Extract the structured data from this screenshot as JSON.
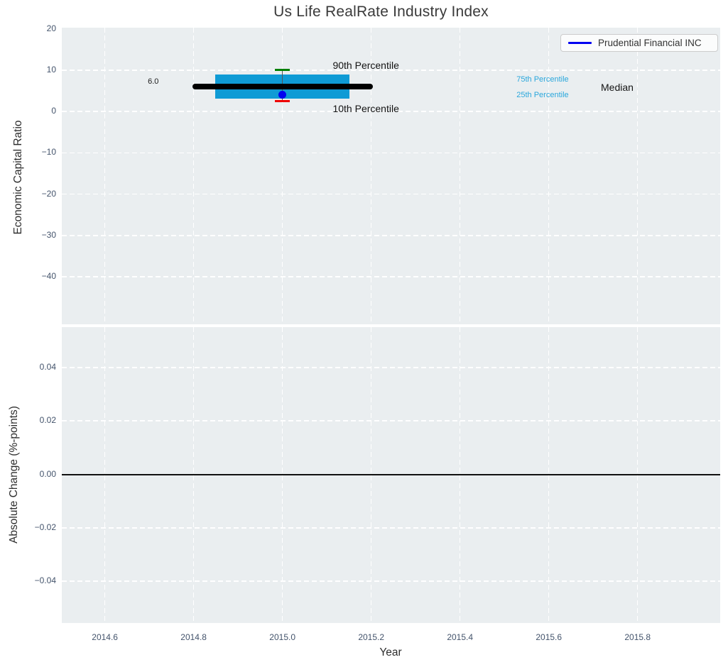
{
  "title": "Us Life RealRate Industry Index",
  "legend": {
    "label": "Prudential Financial INC"
  },
  "colors": {
    "plot_bg": "#eaeef0",
    "grid": "#ffffff",
    "box_fill": "#0f9bd5",
    "median_line": "#000000",
    "whisker_line": "#555555",
    "cap_90": "#008000",
    "cap_10": "#ee0000",
    "company_dot": "#0202f0",
    "legend_line": "#0202f0",
    "zero_line": "#111111",
    "tick_label": "#43536b",
    "annotation_blue": "#2aa7dc"
  },
  "chart_data": [
    {
      "type": "boxplot",
      "panel": "economic-capital-ratio",
      "ylabel": "Economic Capital Ratio",
      "grid": "dashed-white",
      "legend_position": "upper-right",
      "xlim": [
        2014.503,
        2015.986
      ],
      "ylim": [
        -51.5,
        20.3
      ],
      "yticks": [
        20,
        10,
        0,
        -10,
        -20,
        -30,
        -40
      ],
      "ytick_labels": [
        "20",
        "10",
        "0",
        "−10",
        "−20",
        "−30",
        "−40"
      ],
      "xticks": [
        2014.6,
        2014.8,
        2015.0,
        2015.2,
        2015.4,
        2015.6,
        2015.8
      ],
      "box": {
        "x": 2015.0,
        "median": 6.0,
        "q1": 3.1,
        "q3": 8.9,
        "p10": 2.5,
        "p90": 10.1,
        "box_halfwidth": 0.151,
        "median_halfwidth": 0.203,
        "cap_halfwidth": 0.0165
      },
      "company_point": {
        "name": "Prudential Financial INC",
        "x": 2015.0,
        "y": 4.1
      },
      "annotations": [
        {
          "text": "6.0",
          "x": 2014.709,
          "y": 7.25,
          "style": "tiny-dark"
        },
        {
          "text": "90th Percentile",
          "x": 2015.188,
          "y": 11.2,
          "style": "med-dark"
        },
        {
          "text": "10th Percentile",
          "x": 2015.188,
          "y": 0.8,
          "style": "med-dark"
        },
        {
          "text": "75th Percentile",
          "x": 2015.586,
          "y": 7.8,
          "style": "small-blue"
        },
        {
          "text": "25th Percentile",
          "x": 2015.586,
          "y": 4.05,
          "style": "small-blue"
        },
        {
          "text": "Median",
          "x": 2015.754,
          "y": 5.95,
          "style": "med-dark"
        }
      ]
    },
    {
      "type": "line",
      "panel": "absolute-change",
      "ylabel": "Absolute Change (%-points)",
      "xlabel": "Year",
      "grid": "dashed-white",
      "xlim": [
        2014.503,
        2015.986
      ],
      "ylim": [
        -0.0556,
        0.0551
      ],
      "yticks": [
        0.04,
        0.02,
        0.0,
        -0.02,
        -0.04
      ],
      "ytick_labels": [
        "0.04",
        "0.02",
        "0.00",
        "−0.02",
        "−0.04"
      ],
      "xticks": [
        2014.6,
        2014.8,
        2015.0,
        2015.2,
        2015.4,
        2015.6,
        2015.8
      ],
      "xtick_labels": [
        "2014.6",
        "2014.8",
        "2015.0",
        "2015.2",
        "2015.4",
        "2015.6",
        "2015.8"
      ],
      "zero_line": 0.0
    }
  ]
}
